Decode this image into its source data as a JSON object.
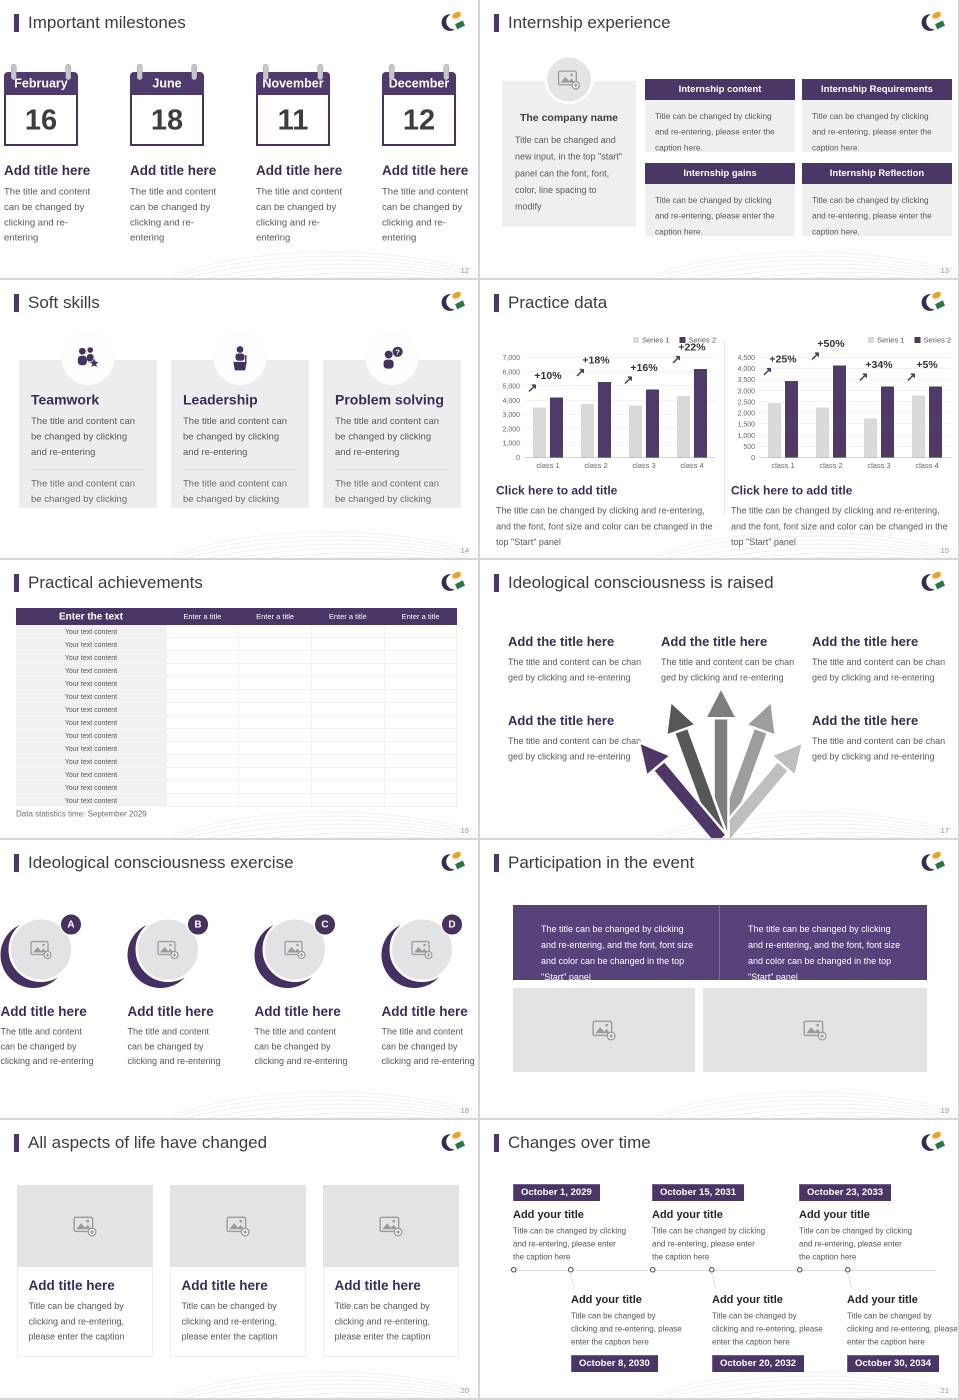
{
  "theme": {
    "primary_purple": "#4b3869",
    "banner_purple": "#57427a",
    "series1_gray": "#d9d9d9",
    "series2_purple": "#4f3a68",
    "panel_gray": "#efefef",
    "title_text": "#3c3c3c",
    "body_text": "#595959"
  },
  "icons": {
    "logo": "brand-logo-icon",
    "image_placeholder": "image-placeholder-icon",
    "teamwork": "teamwork-icon",
    "leadership": "leadership-icon",
    "problem_solving": "problem-solving-icon",
    "growth_arrow": "up-right-arrow-icon",
    "merging_arrows": "merging-arrows-icon"
  },
  "slides": {
    "milestones": {
      "title": "Important milestones",
      "page": "12",
      "item_title": "Add title here",
      "item_body": "The title and content can be changed by clicking and re-entering",
      "items": [
        {
          "month": "February",
          "day": "16"
        },
        {
          "month": "June",
          "day": "18"
        },
        {
          "month": "November",
          "day": "11"
        },
        {
          "month": "December",
          "day": "12"
        }
      ]
    },
    "internship": {
      "title": "Internship experience",
      "page": "13",
      "company_name": "The company name",
      "company_body": "Title can be changed and new input, in the top \"start\" panel can the font, font, color, line spacing to modify",
      "box_caption": "Title can be changed by clicking and re-entering, please enter the caption here.",
      "boxes": [
        {
          "header": "Internship content"
        },
        {
          "header": "Internship Requirements"
        },
        {
          "header": "Internship gains"
        },
        {
          "header": "Internship Reflection"
        }
      ]
    },
    "soft_skills": {
      "title": "Soft skills",
      "page": "14",
      "body1": "The title and content can be changed by clicking and re-entering",
      "body2": "The title and content can be changed by clicking",
      "cards": [
        {
          "name": "Teamwork"
        },
        {
          "name": "Leadership"
        },
        {
          "name": "Problem solving"
        }
      ]
    },
    "practice_data": {
      "title": "Practice data",
      "page": "15",
      "caption_title": "Click here to add title",
      "caption_body": "The title can be changed by clicking and re-entering, and the font, font size and color can be changed in the top \"Start\" panel"
    },
    "achievements": {
      "title": "Practical achievements",
      "page": "16",
      "header_first": "Enter the text",
      "header_col": "Enter a title",
      "row_text": "Your text content",
      "row_count": 14,
      "footer": "Data statistics time: September 2029"
    },
    "raised": {
      "title": "Ideological consciousness is raised",
      "page": "17",
      "item_title": "Add the title here",
      "item_line1": "The title and content can be chan",
      "item_line2": "ged by clicking and re-entering"
    },
    "exercise": {
      "title": "Ideological consciousness exercise",
      "page": "18",
      "item_title": "Add title here",
      "item_body": "The title and content can be changed by clicking and re-entering",
      "badges": [
        "A",
        "B",
        "C",
        "D"
      ]
    },
    "participation": {
      "title": "Participation in the event",
      "page": "19",
      "banner_text": "The title can be changed by clicking and re-entering, and the font, font size and color can be changed in the top \"Start\" panel"
    },
    "life_changed": {
      "title": "All aspects of life have changed",
      "page": "20",
      "item_title": "Add title here",
      "item_body": "Title can be changed by clicking and re-entering, please enter the caption"
    },
    "timeline": {
      "title": "Changes over time",
      "page": "21",
      "item_title": "Add your title",
      "item_body": "Title can be changed by clicking and re-entering, please enter the caption here",
      "top_dates": [
        "October 1, 2029",
        "October 15, 2031",
        "October 23, 2033"
      ],
      "bottom_dates": [
        "October 8, 2030",
        "October 20, 2032",
        "October 30, 2034"
      ]
    }
  },
  "chart_data": [
    {
      "type": "bar",
      "title": "",
      "categories": [
        "class 1",
        "class 2",
        "class 3",
        "class 4"
      ],
      "series": [
        {
          "name": "Series 1",
          "color": "#d9d9d9",
          "values": [
            3500,
            3750,
            3650,
            4300
          ]
        },
        {
          "name": "Series 2",
          "color": "#4f3a68",
          "values": [
            4200,
            5300,
            4750,
            6200
          ]
        }
      ],
      "bar_labels": [
        "+10%",
        "+18%",
        "+16%",
        "+22%"
      ],
      "ylim": [
        0,
        7000
      ],
      "ytick_labels": [
        "0",
        "1,000",
        "2,000",
        "3,000",
        "4,000",
        "5,000",
        "6,000",
        "7,000"
      ],
      "legend_position": "top-right",
      "grid": true
    },
    {
      "type": "bar",
      "title": "",
      "categories": [
        "class 1",
        "class 2",
        "class 3",
        "class 4"
      ],
      "series": [
        {
          "name": "Series 1",
          "color": "#d9d9d9",
          "values": [
            2450,
            2250,
            1750,
            2800
          ]
        },
        {
          "name": "Series 2",
          "color": "#4f3a68",
          "values": [
            3450,
            4150,
            3200,
            3200
          ]
        }
      ],
      "bar_labels": [
        "+25%",
        "+50%",
        "+34%",
        "+5%"
      ],
      "ylim": [
        0,
        4500
      ],
      "ytick_labels": [
        "0",
        "500",
        "1,000",
        "1,500",
        "2,000",
        "2,500",
        "3,000",
        "3,500",
        "4,000",
        "4,500"
      ],
      "legend_position": "top-right",
      "grid": true
    }
  ]
}
